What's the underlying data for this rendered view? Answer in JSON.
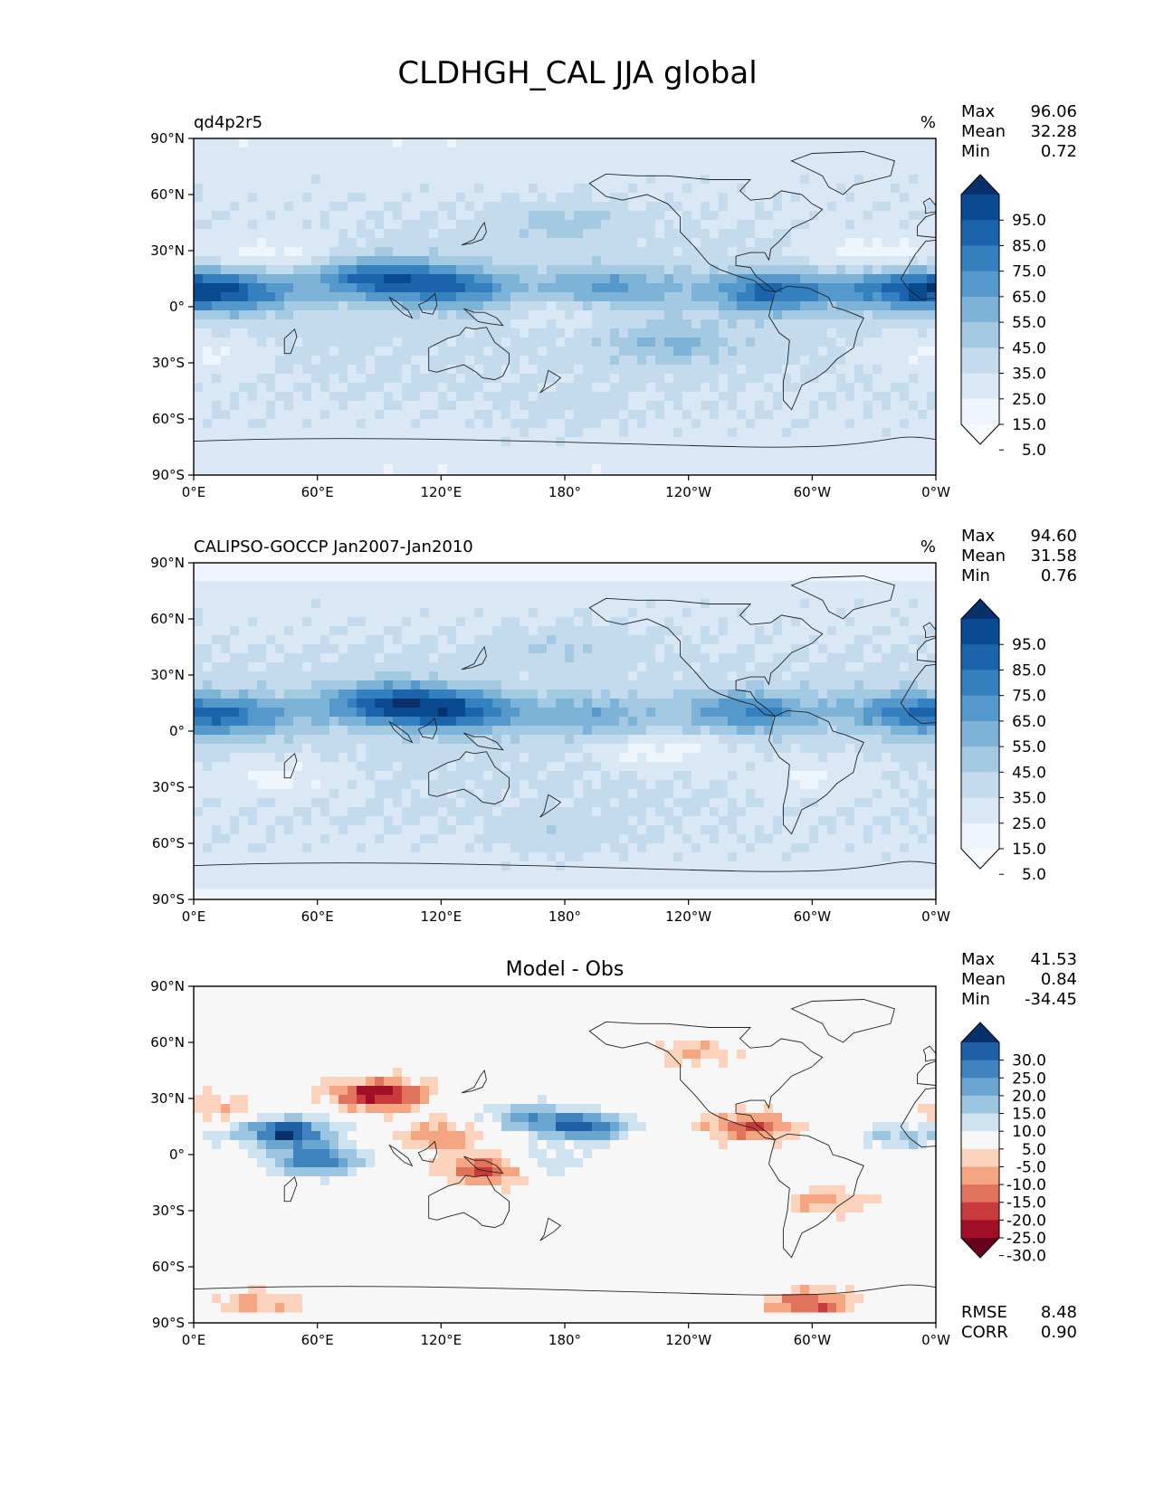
{
  "figure": {
    "title": "CLDHGH_CAL JJA global"
  },
  "axes": {
    "x_ticks": [
      "0°E",
      "60°E",
      "120°E",
      "180°",
      "120°W",
      "60°W",
      "0°W"
    ],
    "y_ticks": [
      "90°N",
      "60°N",
      "30°N",
      "0°",
      "30°S",
      "60°S",
      "90°S"
    ]
  },
  "panels": [
    {
      "left_title": "qd4p2r5",
      "center_title": "",
      "unit": "%",
      "stats": [
        {
          "label": "Max",
          "value": "96.06"
        },
        {
          "label": "Mean",
          "value": "32.28"
        },
        {
          "label": "Min",
          "value": "0.72"
        }
      ],
      "colorbar_labels": [
        "95.0",
        "85.0",
        "75.0",
        "65.0",
        "55.0",
        "45.0",
        "35.0",
        "25.0",
        "15.0",
        "5.0"
      ],
      "colorbar_colors": [
        "#08306b",
        "#0a4a90",
        "#1b64ab",
        "#3581c0",
        "#5598cb",
        "#7eb3d8",
        "#a4c9e3",
        "#c4dbee",
        "#dae8f5",
        "#eef5fc",
        "#f7fbff"
      ],
      "footer_stats": []
    },
    {
      "left_title": "CALIPSO-GOCCP Jan2007-Jan2010",
      "center_title": "",
      "unit": "%",
      "stats": [
        {
          "label": "Max",
          "value": "94.60"
        },
        {
          "label": "Mean",
          "value": "31.58"
        },
        {
          "label": "Min",
          "value": "0.76"
        }
      ],
      "colorbar_labels": [
        "95.0",
        "85.0",
        "75.0",
        "65.0",
        "55.0",
        "45.0",
        "35.0",
        "25.0",
        "15.0",
        "5.0"
      ],
      "colorbar_colors": [
        "#08306b",
        "#0a4a90",
        "#1b64ab",
        "#3581c0",
        "#5598cb",
        "#7eb3d8",
        "#a4c9e3",
        "#c4dbee",
        "#dae8f5",
        "#eef5fc",
        "#f7fbff"
      ],
      "footer_stats": []
    },
    {
      "left_title": "",
      "center_title": "Model - Obs",
      "unit": "",
      "stats": [
        {
          "label": "Max",
          "value": "41.53"
        },
        {
          "label": "Mean",
          "value": "0.84"
        },
        {
          "label": "Min",
          "value": "-34.45"
        }
      ],
      "colorbar_labels": [
        "30.0",
        "25.0",
        "20.0",
        "15.0",
        "10.0",
        "5.0",
        "-5.0",
        "-10.0",
        "-15.0",
        "-20.0",
        "-25.0",
        "-30.0"
      ],
      "colorbar_colors": [
        "#08306b",
        "#1f5fa6",
        "#3f84bf",
        "#6ba6d0",
        "#9cc5e1",
        "#cfe2f0",
        "#f7f7f7",
        "#fbd2bc",
        "#f4a582",
        "#e0735b",
        "#c83a3c",
        "#a10f26",
        "#67001f"
      ],
      "footer_stats": [
        {
          "label": "RMSE",
          "value": "8.48"
        },
        {
          "label": "CORR",
          "value": "0.90"
        }
      ]
    }
  ],
  "chart_data": [
    {
      "type": "heatmap",
      "field": "high cloud fraction (model)",
      "x_range": [
        0,
        360
      ],
      "y_range": [
        -90,
        90
      ],
      "value_range": [
        0.72,
        96.06
      ],
      "mean": 32.28,
      "levels": [
        5,
        15,
        25,
        35,
        45,
        55,
        65,
        75,
        85,
        95
      ],
      "features": [
        {
          "lon": 90,
          "lat": 15,
          "value": 75
        },
        {
          "lon": 130,
          "lat": 10,
          "value": 65
        },
        {
          "lon": 20,
          "lat": 8,
          "value": 70
        },
        {
          "lon": 280,
          "lat": 8,
          "value": 75
        },
        {
          "lon": 345,
          "lat": 10,
          "value": 70
        },
        {
          "lon": 200,
          "lat": 10,
          "value": 60
        },
        {
          "lon": 180,
          "lat": 0,
          "value": 12
        },
        {
          "lon": 330,
          "lat": 28,
          "value": 8
        },
        {
          "lon": 40,
          "lat": 28,
          "value": 10
        },
        {
          "lon": 0,
          "lat": -25,
          "value": 12
        },
        {
          "lon": 230,
          "lat": -20,
          "value": 45
        },
        {
          "lon": 180,
          "lat": 45,
          "value": 40
        },
        {
          "lon": 180,
          "lat": -55,
          "value": 30
        }
      ]
    },
    {
      "type": "heatmap",
      "field": "high cloud fraction (CALIPSO-GOCCP obs)",
      "x_range": [
        0,
        360
      ],
      "y_range": [
        -90,
        90
      ],
      "value_range": [
        0.76,
        94.6
      ],
      "mean": 31.58,
      "levels": [
        5,
        15,
        25,
        35,
        45,
        55,
        65,
        75,
        85,
        95
      ],
      "features": [
        {
          "lon": 95,
          "lat": 15,
          "value": 80
        },
        {
          "lon": 130,
          "lat": 10,
          "value": 70
        },
        {
          "lon": 20,
          "lat": 8,
          "value": 60
        },
        {
          "lon": 270,
          "lat": 10,
          "value": 65
        },
        {
          "lon": 345,
          "lat": 10,
          "value": 60
        },
        {
          "lon": 195,
          "lat": 8,
          "value": 50
        },
        {
          "lon": 225,
          "lat": -10,
          "value": 8
        },
        {
          "lon": 40,
          "lat": -25,
          "value": 10
        },
        {
          "lon": 300,
          "lat": -25,
          "value": 12
        },
        {
          "lon": 180,
          "lat": 45,
          "value": 35
        },
        {
          "lon": 180,
          "lat": -55,
          "value": 35
        }
      ]
    },
    {
      "type": "heatmap",
      "field": "difference (model - obs)",
      "x_range": [
        0,
        360
      ],
      "y_range": [
        -90,
        90
      ],
      "value_range": [
        -34.45,
        41.53
      ],
      "mean": 0.84,
      "rmse": 8.48,
      "corr": 0.9,
      "levels": [
        -30,
        -25,
        -20,
        -15,
        -10,
        -5,
        5,
        10,
        15,
        20,
        25,
        30
      ],
      "features": [
        {
          "lon": 45,
          "lat": 12,
          "value": 30
        },
        {
          "lon": 60,
          "lat": -3,
          "value": 25
        },
        {
          "lon": 190,
          "lat": 15,
          "value": 25
        },
        {
          "lon": 160,
          "lat": 20,
          "value": 15
        },
        {
          "lon": 165,
          "lat": -5,
          "value": 15
        },
        {
          "lon": 345,
          "lat": 10,
          "value": 12
        },
        {
          "lon": 90,
          "lat": 32,
          "value": -30
        },
        {
          "lon": 145,
          "lat": -8,
          "value": -25
        },
        {
          "lon": 120,
          "lat": 10,
          "value": -15
        },
        {
          "lon": 270,
          "lat": 15,
          "value": -20
        },
        {
          "lon": 305,
          "lat": -25,
          "value": -12
        },
        {
          "lon": 300,
          "lat": -80,
          "value": -20
        },
        {
          "lon": 30,
          "lat": -80,
          "value": -12
        },
        {
          "lon": 245,
          "lat": 55,
          "value": -10
        },
        {
          "lon": 10,
          "lat": 25,
          "value": -10
        }
      ]
    }
  ]
}
